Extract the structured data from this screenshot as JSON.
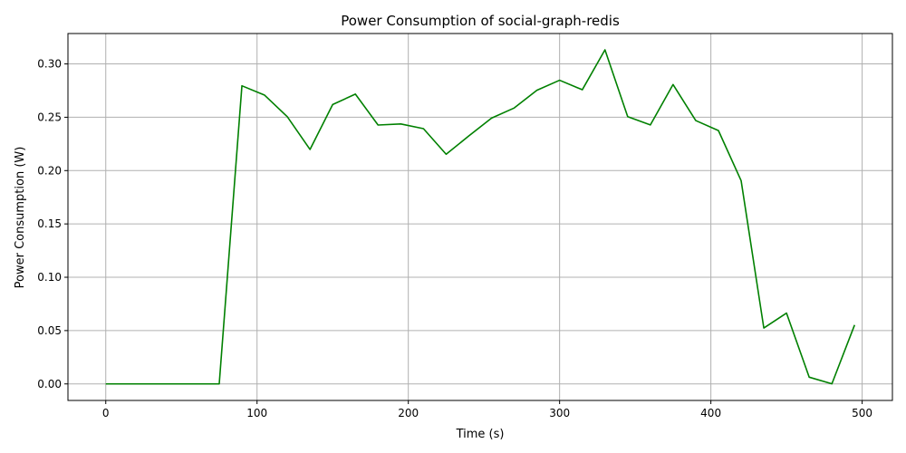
{
  "chart_data": {
    "type": "line",
    "title": "Power Consumption of social-graph-redis",
    "xlabel": "Time (s)",
    "ylabel": "Power Consumption (W)",
    "xlim": [
      -25,
      520
    ],
    "ylim": [
      -0.0155,
      0.3285
    ],
    "xticks": [
      0,
      100,
      200,
      300,
      400,
      500
    ],
    "xtick_labels": [
      "0",
      "100",
      "200",
      "300",
      "400",
      "500"
    ],
    "yticks": [
      0.0,
      0.05,
      0.1,
      0.15,
      0.2,
      0.25,
      0.3
    ],
    "ytick_labels": [
      "0.00",
      "0.05",
      "0.10",
      "0.15",
      "0.20",
      "0.25",
      "0.30"
    ],
    "grid": true,
    "legend": "none",
    "line_color": "#008000",
    "grid_color": "#b0b0b0",
    "series": [
      {
        "x": [
          0,
          15,
          30,
          45,
          60,
          75,
          90,
          105,
          120,
          135,
          150,
          165,
          180,
          195,
          210,
          225,
          240,
          255,
          270,
          285,
          300,
          315,
          330,
          345,
          360,
          375,
          390,
          405,
          420,
          435,
          450,
          465,
          480,
          495
        ],
        "values": [
          0.0,
          0.0,
          0.0,
          0.0,
          0.0,
          0.0,
          0.2795,
          0.2707,
          0.2505,
          0.2198,
          0.2619,
          0.2717,
          0.2427,
          0.2437,
          0.2393,
          0.2153,
          0.2325,
          0.2492,
          0.2587,
          0.2753,
          0.2847,
          0.2758,
          0.3132,
          0.2506,
          0.2428,
          0.2807,
          0.2469,
          0.2375,
          0.1905,
          0.0524,
          0.0664,
          0.0063,
          0.0001,
          0.0553
        ]
      }
    ]
  }
}
